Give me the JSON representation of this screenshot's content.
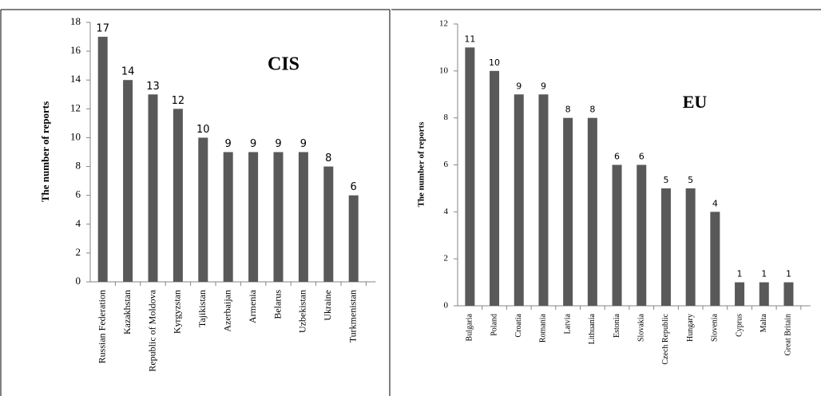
{
  "chart_data": [
    {
      "type": "bar",
      "title": "CIS",
      "y_label": "The number of reports",
      "categories": [
        "Russian Federation",
        "Kazakhstan",
        "Republic of Moldova",
        "Kyrgyzstan",
        "Tajikistan",
        "Azerbaijan",
        "Armenia",
        "Belarus",
        "Uzbekistan",
        "Ukraine",
        "Turkmenistan"
      ],
      "values": [
        17,
        14,
        13,
        12,
        10,
        9,
        9,
        9,
        9,
        8,
        6
      ],
      "color": "#595959",
      "ylim": [
        0,
        18
      ],
      "yticks": [
        0,
        2,
        4,
        6,
        8,
        10,
        12,
        14,
        16,
        18
      ],
      "grid": false
    },
    {
      "type": "bar",
      "title": "EU",
      "y_label": "The number of reports",
      "categories": [
        "Bulgaria",
        "Poland",
        "Croatia",
        "Romania",
        "Latvia",
        "Lithuania",
        "Estonia",
        "Slovakia",
        "Czech Republic",
        "Hungary",
        "Slovenia",
        "Cyprus",
        "Malta",
        "Great Britain"
      ],
      "values": [
        11,
        10,
        9,
        9,
        8,
        8,
        6,
        6,
        5,
        5,
        4,
        1,
        1,
        1
      ],
      "color": "#595959",
      "ylim": [
        0,
        12
      ],
      "yticks": [
        0,
        2,
        4,
        6,
        8,
        10,
        12
      ],
      "grid": false
    }
  ]
}
